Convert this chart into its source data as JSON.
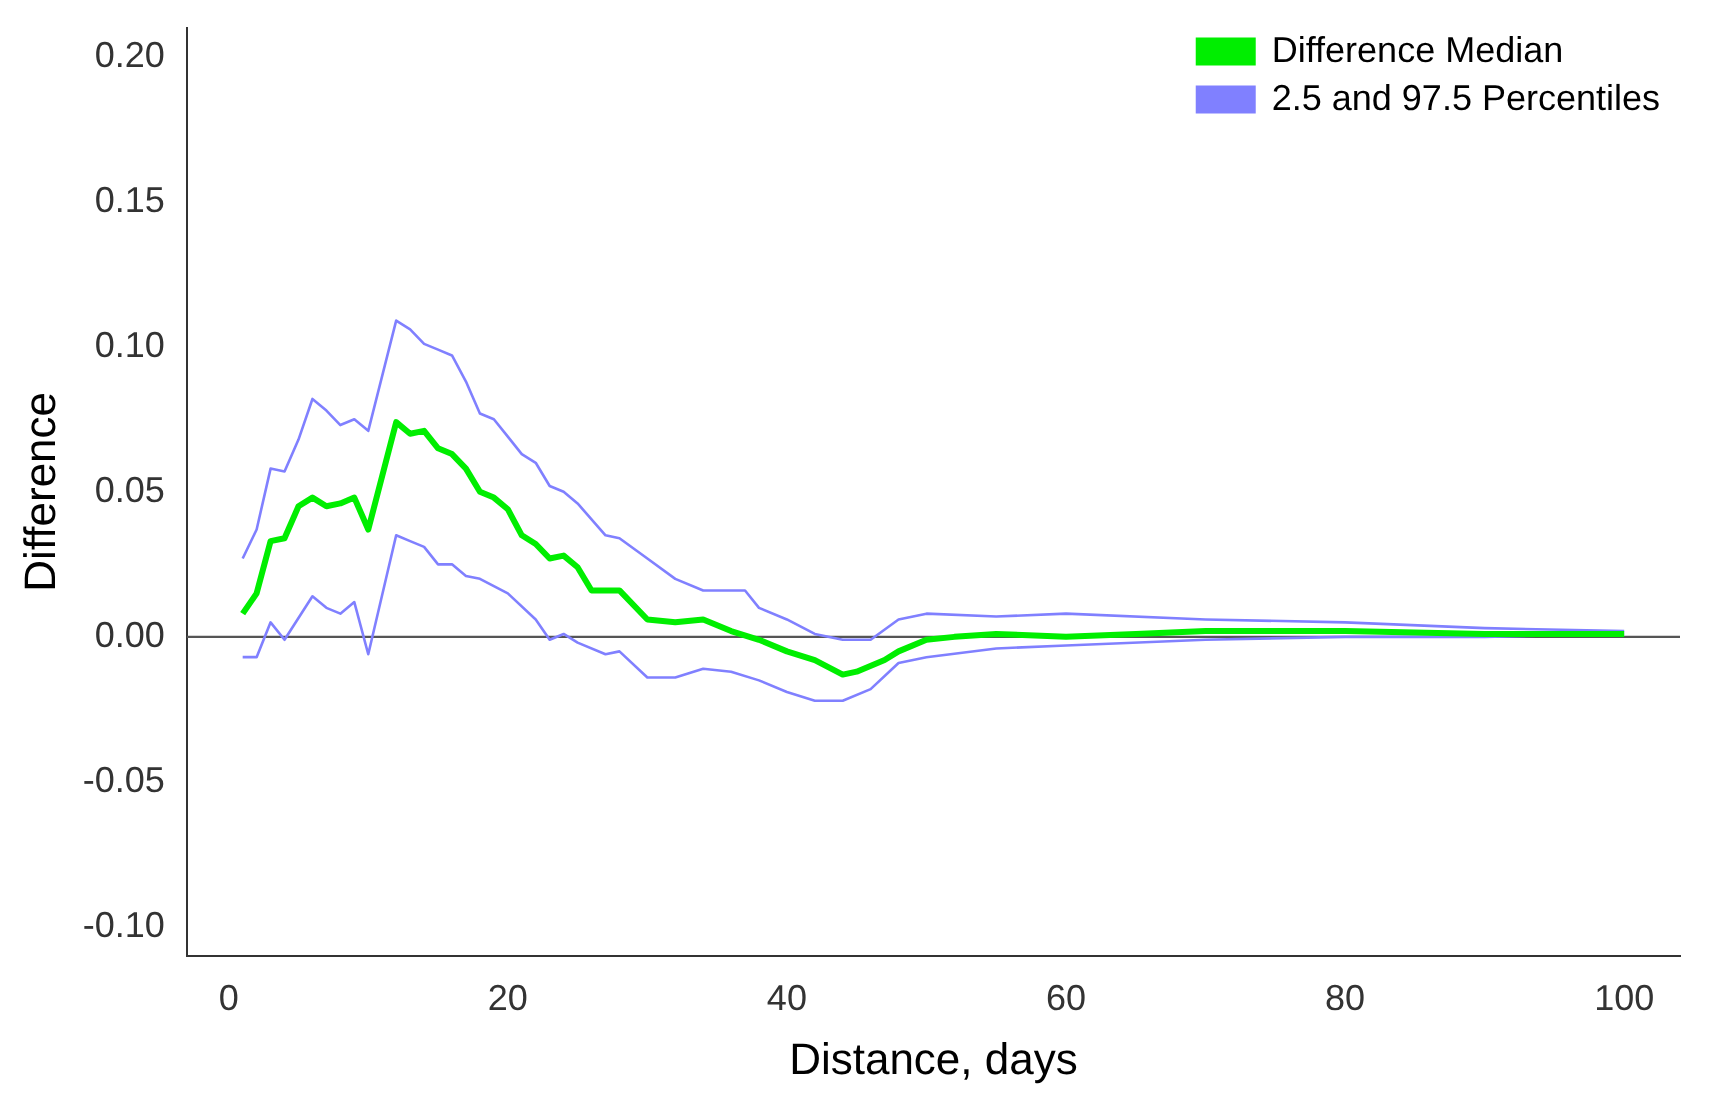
{
  "chart_data": {
    "type": "line",
    "xlabel": "Distance, days",
    "ylabel": "Difference",
    "xlim": [
      -3,
      104
    ],
    "xticks": [
      0,
      20,
      40,
      60,
      80,
      100
    ],
    "ylim": [
      -0.11,
      0.21
    ],
    "yticks": [
      {
        "value": -0.1,
        "label": "-0.10"
      },
      {
        "value": -0.05,
        "label": "-0.05"
      },
      {
        "value": 0,
        "label": "0.00"
      },
      {
        "value": 0.05,
        "label": "0.05"
      },
      {
        "value": 0.1,
        "label": "0.10"
      },
      {
        "value": 0.15,
        "label": "0.15"
      },
      {
        "value": 0.2,
        "label": "0.20"
      }
    ],
    "grid": false,
    "legend": "top right",
    "marker": "none",
    "line_style": "solid",
    "ref_lines": [
      {
        "axis": "y",
        "value": 0,
        "color": "#555555"
      }
    ],
    "series": [
      {
        "name": "Difference Median",
        "color": "#00ee00",
        "x": [
          1,
          2,
          3,
          4,
          5,
          6,
          7,
          8,
          9,
          10,
          12,
          13,
          14,
          15,
          16,
          17,
          18,
          19,
          20,
          21,
          22,
          23,
          24,
          25,
          26,
          28,
          30,
          32,
          34,
          36,
          38,
          40,
          42,
          44,
          45,
          47,
          48,
          50,
          52,
          55,
          60,
          65,
          70,
          75,
          80,
          90,
          100
        ],
        "values": [
          0.008,
          0.015,
          0.033,
          0.034,
          0.045,
          0.048,
          0.045,
          0.046,
          0.048,
          0.037,
          0.074,
          0.07,
          0.071,
          0.065,
          0.063,
          0.058,
          0.05,
          0.048,
          0.044,
          0.035,
          0.032,
          0.027,
          0.028,
          0.024,
          0.016,
          0.016,
          0.006,
          0.005,
          0.006,
          0.002,
          -0.001,
          -0.005,
          -0.008,
          -0.013,
          -0.012,
          -0.008,
          -0.005,
          -0.001,
          0,
          0.001,
          0,
          0.001,
          0.002,
          0.002,
          0.002,
          0.001,
          0.001
        ]
      },
      {
        "name": "2.5 and 97.5 Percentiles",
        "color": "#8080ff",
        "x": [
          1,
          2,
          3,
          4,
          5,
          6,
          7,
          8,
          9,
          10,
          12,
          13,
          14,
          15,
          16,
          17,
          18,
          19,
          20,
          21,
          22,
          23,
          24,
          25,
          27,
          28,
          30,
          32,
          34,
          35,
          37,
          38,
          40,
          42,
          44,
          46,
          48,
          50,
          55,
          60,
          70,
          80,
          90,
          100
        ],
        "values": [
          0.027,
          0.037,
          0.058,
          0.057,
          0.068,
          0.082,
          0.078,
          0.073,
          0.075,
          0.071,
          0.109,
          0.106,
          0.101,
          0.099,
          0.097,
          0.088,
          0.077,
          0.075,
          0.069,
          0.063,
          0.06,
          0.052,
          0.05,
          0.046,
          0.035,
          0.034,
          0.027,
          0.02,
          0.016,
          0.016,
          0.016,
          0.01,
          0.006,
          0.001,
          -0.001,
          -0.001,
          0.006,
          0.008,
          0.007,
          0.008,
          0.006,
          0.005,
          0.003,
          0.002
        ]
      },
      {
        "color": "#8080ff",
        "x": [
          1,
          2,
          3,
          4,
          6,
          7,
          8,
          9,
          10,
          12,
          13,
          14,
          15,
          16,
          17,
          18,
          20,
          22,
          23,
          24,
          25,
          27,
          28,
          30,
          32,
          34,
          36,
          38,
          40,
          42,
          44,
          46,
          48,
          50,
          55,
          60,
          70,
          80,
          90,
          100
        ],
        "values": [
          -0.007,
          -0.007,
          0.005,
          -0.001,
          0.014,
          0.01,
          0.008,
          0.012,
          -0.006,
          0.035,
          0.033,
          0.031,
          0.025,
          0.025,
          0.021,
          0.02,
          0.015,
          0.006,
          -0.001,
          0.001,
          -0.002,
          -0.006,
          -0.005,
          -0.014,
          -0.014,
          -0.011,
          -0.012,
          -0.015,
          -0.019,
          -0.022,
          -0.022,
          -0.018,
          -0.009,
          -0.007,
          -0.004,
          -0.003,
          -0.001,
          0,
          0,
          0.001
        ]
      }
    ]
  }
}
